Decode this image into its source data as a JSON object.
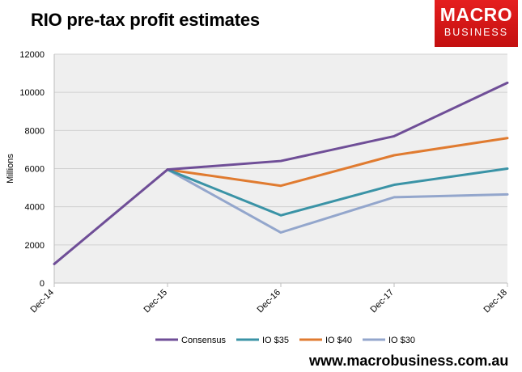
{
  "header": {
    "title": "RIO pre-tax profit estimates"
  },
  "logo": {
    "line1": "MACRO",
    "line2": "BUSINESS"
  },
  "footer": {
    "url": "www.macrobusiness.com.au"
  },
  "colors": {
    "plot_bg": "#efefef",
    "grid": "#d0d0d0",
    "consensus": "#6f4e97",
    "io35": "#3a93a6",
    "io40": "#e07b30",
    "io30": "#93a6cc"
  },
  "chart_data": {
    "type": "line",
    "title": "RIO pre-tax profit estimates",
    "xlabel": "",
    "ylabel": "Millions",
    "categories": [
      "Dec-14",
      "Dec-15",
      "Dec-16",
      "Dec-17",
      "Dec-18"
    ],
    "ylim": [
      0,
      12000
    ],
    "yticks": [
      0,
      2000,
      4000,
      6000,
      8000,
      10000,
      12000
    ],
    "grid": "horizontal",
    "legend": "bottom",
    "series": [
      {
        "name": "Consensus",
        "color": "#6f4e97",
        "values": [
          1000,
          5950,
          6400,
          7700,
          10500
        ]
      },
      {
        "name": "IO $35",
        "color": "#3a93a6",
        "values": [
          null,
          5950,
          3550,
          5150,
          6000
        ]
      },
      {
        "name": "IO $40",
        "color": "#e07b30",
        "values": [
          null,
          5950,
          5100,
          6700,
          7600
        ]
      },
      {
        "name": "IO $30",
        "color": "#93a6cc",
        "values": [
          null,
          5950,
          2650,
          4500,
          4650
        ]
      }
    ]
  }
}
